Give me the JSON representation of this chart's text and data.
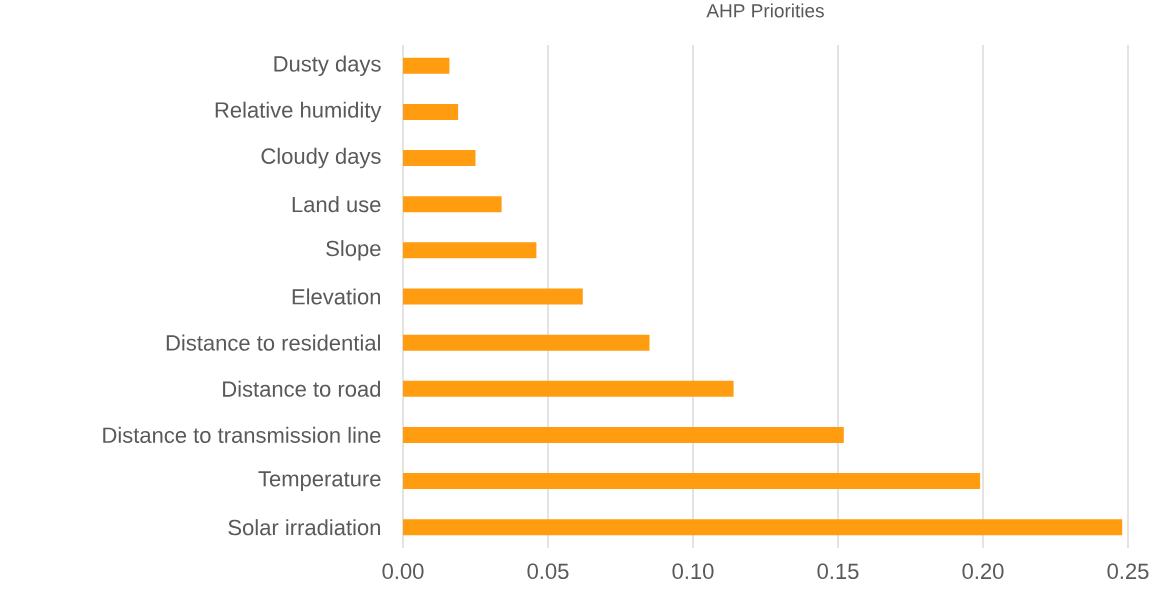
{
  "chart_data": {
    "type": "bar",
    "orientation": "horizontal",
    "title": "AHP Priorities",
    "categories": [
      "Dusty days",
      "Relative humidity",
      "Cloudy days",
      "Land use",
      "Slope",
      "Elevation",
      "Distance to residential",
      "Distance to road",
      "Distance to transmission line",
      "Temperature",
      "Solar irradiation"
    ],
    "values": [
      0.016,
      0.019,
      0.025,
      0.034,
      0.046,
      0.062,
      0.085,
      0.114,
      0.152,
      0.199,
      0.248
    ],
    "color": "#ff9c0f",
    "xlim": [
      0,
      0.25
    ],
    "xticks": [
      {
        "value": 0,
        "label": "0.00"
      },
      {
        "value": 0.05,
        "label": "0.05"
      },
      {
        "value": 0.1,
        "label": "0.10"
      },
      {
        "value": 0.15,
        "label": "0.15"
      },
      {
        "value": 0.2,
        "label": "0.20"
      },
      {
        "value": 0.25,
        "label": "0.25"
      }
    ],
    "grid": "x"
  }
}
